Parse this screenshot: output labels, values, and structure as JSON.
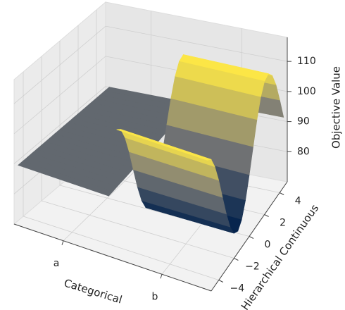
{
  "chart_data": {
    "type": "surface",
    "xlabel": "Categorical",
    "ylabel": "Hierarchical Continuous",
    "zlabel": "Objective Value",
    "categories": [
      "a",
      "b"
    ],
    "y": [
      -5,
      -4.5,
      -4,
      -3.5,
      -3,
      -2.5,
      -2,
      -1.5,
      -1,
      -0.5,
      0,
      0.5,
      1,
      1.5,
      2,
      2.5,
      3,
      3.5,
      4,
      4.5,
      5
    ],
    "values": [
      [
        90,
        90,
        90,
        90,
        90,
        90,
        90,
        90,
        90,
        90,
        90,
        90,
        90,
        90,
        90,
        90,
        90,
        90,
        90,
        90,
        90
      ],
      [
        113.0,
        111.5,
        107.2,
        100.9,
        93.4,
        86.1,
        80.0,
        76.1,
        75.0,
        77.0,
        81.6,
        88.2,
        95.7,
        102.9,
        108.7,
        112.2,
        112.9,
        110.5,
        105.6,
        98.7,
        91.2
      ]
    ],
    "ylim": [
      -5,
      5
    ],
    "yticks": [
      {
        "value": -4,
        "label": "−4"
      },
      {
        "value": -2,
        "label": "−2"
      },
      0,
      2,
      4
    ],
    "zlim": [
      70,
      118
    ],
    "zticks": [
      80,
      90,
      100,
      110
    ],
    "colormap": [
      "#00204c",
      "#7c7b78",
      "#ffe945"
    ],
    "grid": true
  }
}
